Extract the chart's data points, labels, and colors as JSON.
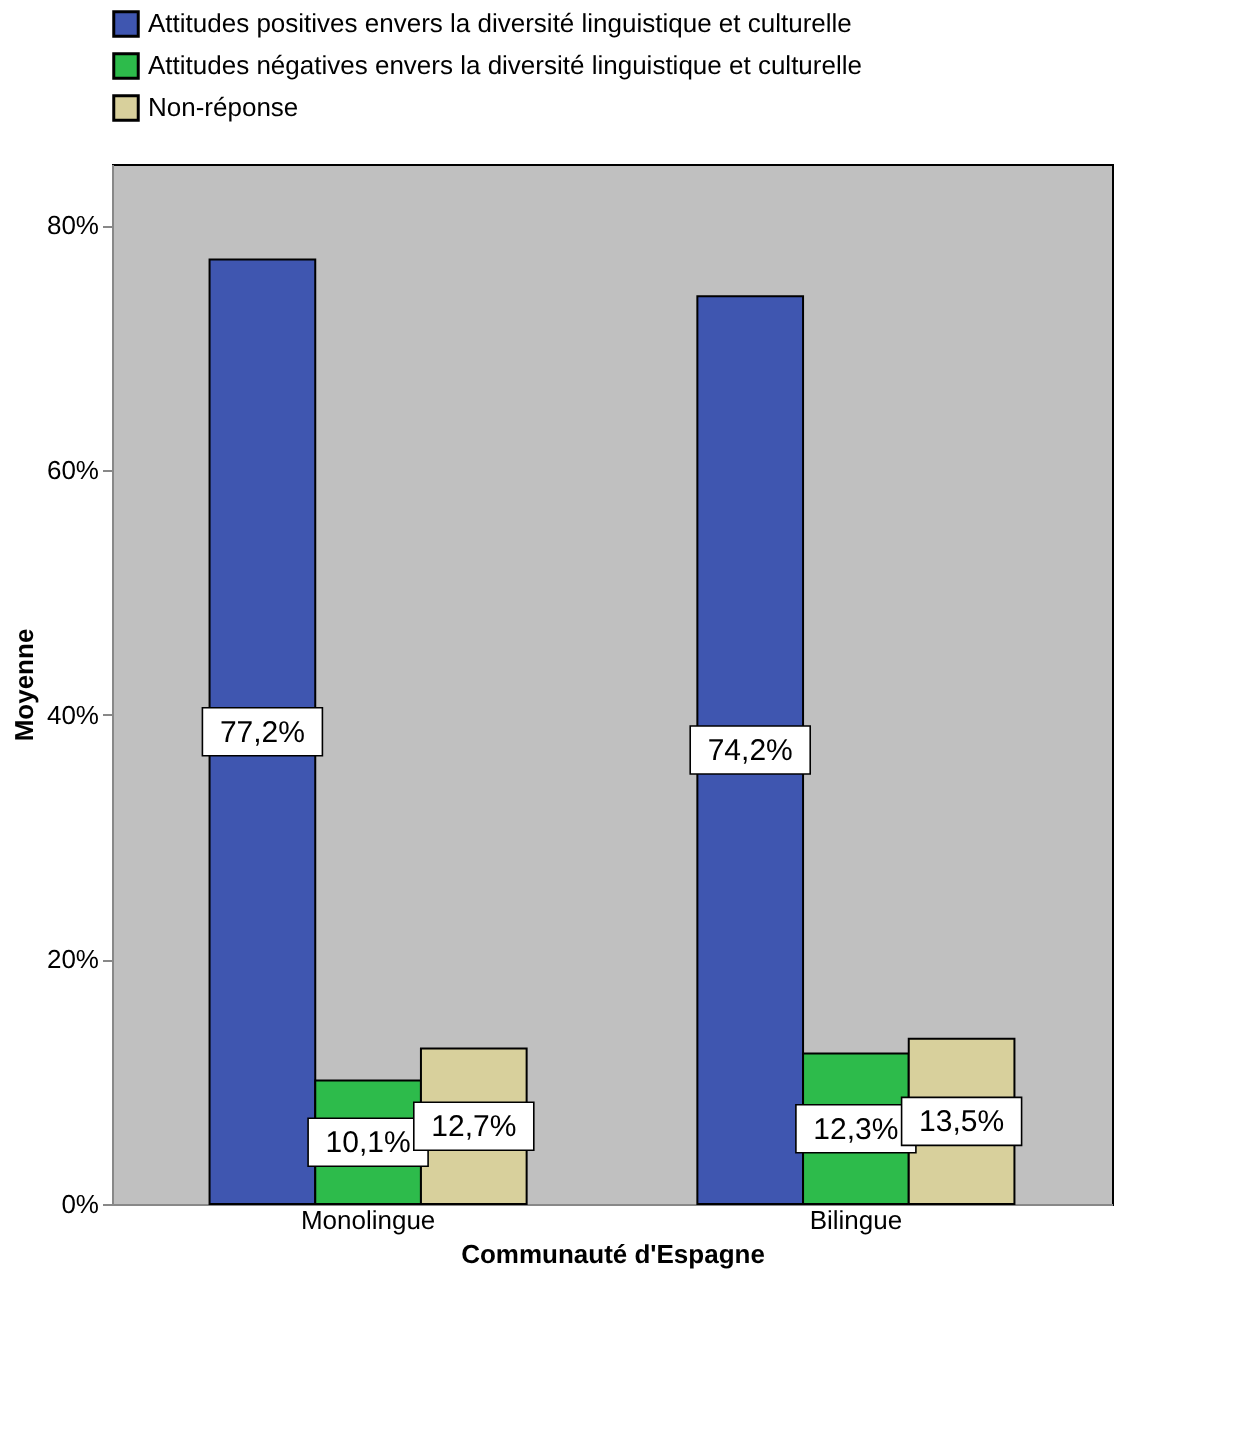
{
  "chart_data": {
    "type": "bar",
    "xlabel": "Communauté d'Espagne",
    "ylabel": "Moyenne",
    "categories": [
      "Monolingue",
      "Bilingue"
    ],
    "series": [
      {
        "name": "Attitudes positives envers la diversité linguistique et culturelle",
        "color": "#3f56b0",
        "values": [
          77.2,
          74.2
        ],
        "value_labels": [
          "77,2%",
          "74,2%"
        ]
      },
      {
        "name": "Attitudes négatives envers la diversité linguistique et culturelle",
        "color": "#2dbb4b",
        "values": [
          10.1,
          12.3
        ],
        "value_labels": [
          "10,1%",
          "12,3%"
        ]
      },
      {
        "name": "Non-réponse",
        "color": "#d8d09c",
        "values": [
          12.7,
          13.5
        ],
        "value_labels": [
          "12,7%",
          "13,5%"
        ]
      }
    ],
    "ylim": [
      0,
      85
    ],
    "yticks": [
      {
        "value": 0,
        "label": "0%"
      },
      {
        "value": 20,
        "label": "20%"
      },
      {
        "value": 40,
        "label": "40%"
      },
      {
        "value": 60,
        "label": "60%"
      },
      {
        "value": 80,
        "label": "80%"
      }
    ],
    "grid": false,
    "legend": "top left"
  }
}
